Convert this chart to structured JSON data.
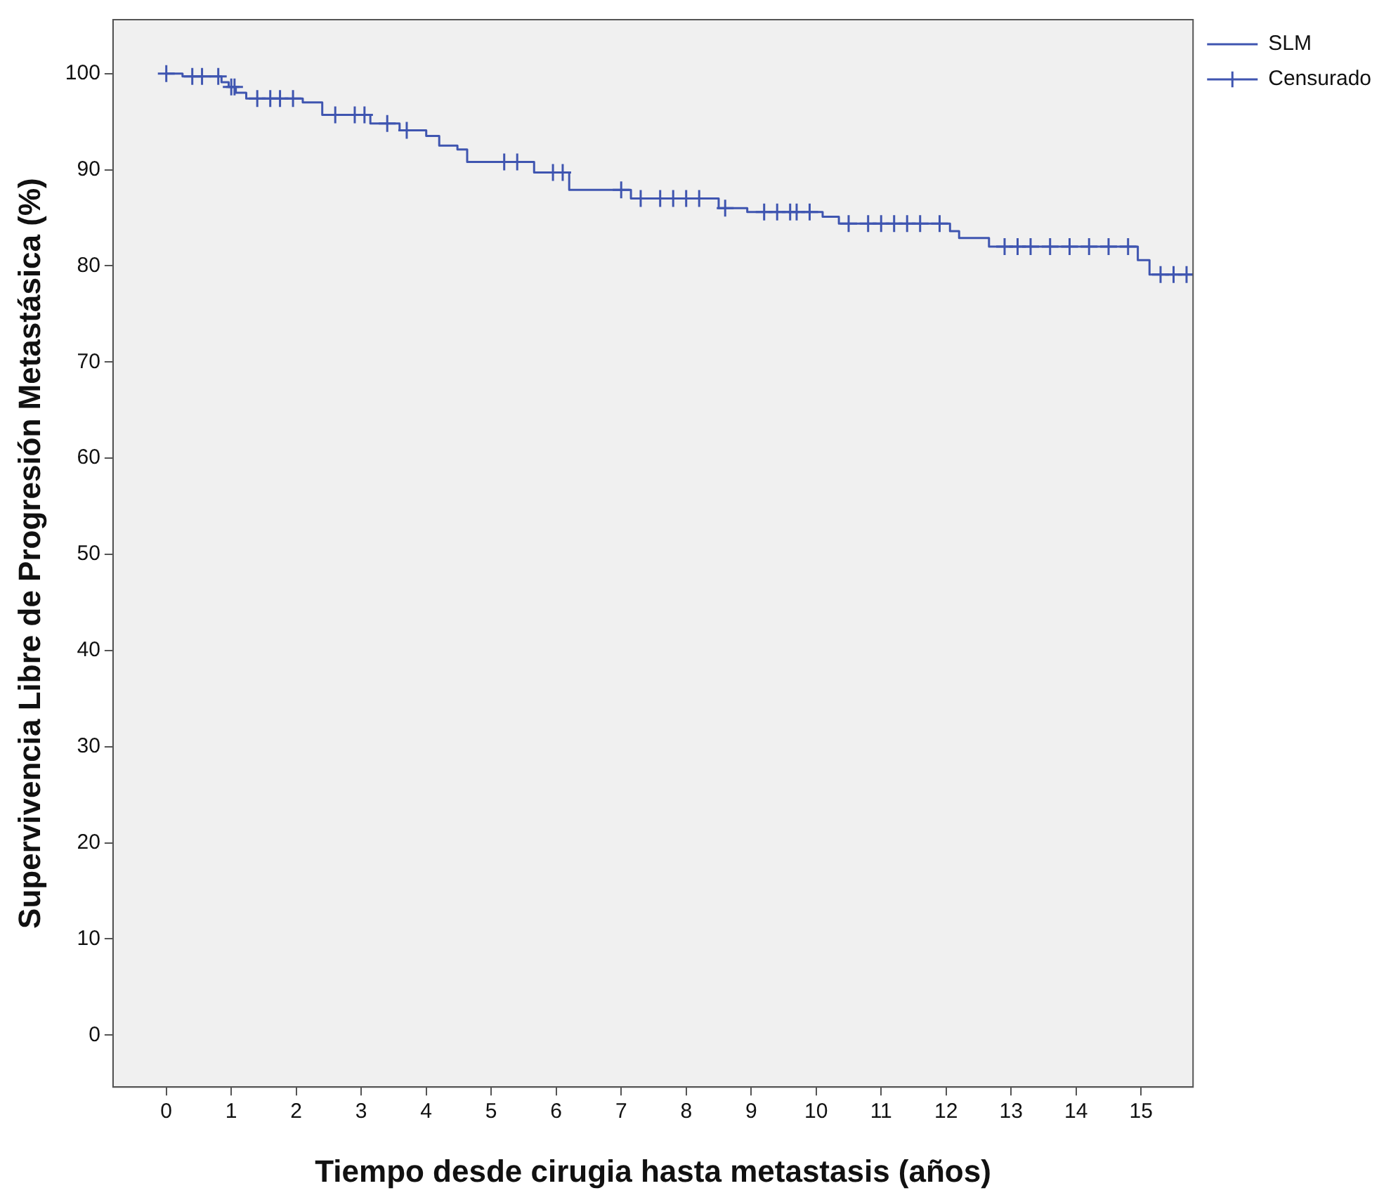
{
  "chart_data": {
    "type": "step",
    "xlabel": "Tiempo desde cirugia hasta metastasis (años)",
    "ylabel": "Supervivencia Libre de Progresión Metastásica (%)",
    "xlim": [
      -0.82,
      15.8
    ],
    "ylim": [
      -5.4,
      105.6
    ],
    "xticks": [
      0,
      1,
      2,
      3,
      4,
      5,
      6,
      7,
      8,
      9,
      10,
      11,
      12,
      13,
      14,
      15
    ],
    "yticks": [
      0,
      10,
      20,
      30,
      40,
      50,
      60,
      70,
      80,
      90,
      100
    ],
    "grid": false,
    "legend": "top right",
    "series": [
      {
        "name": "SLM",
        "color": "#3f55b0",
        "marker": "none",
        "x": [
          0,
          0.25,
          0.85,
          0.96,
          1.07,
          1.23,
          2.1,
          2.4,
          3.14,
          3.59,
          4.0,
          4.2,
          4.48,
          4.63,
          5.66,
          6.2,
          7.15,
          8.5,
          8.94,
          10.1,
          10.35,
          12.06,
          12.2,
          12.66,
          14.95,
          15.13,
          15.8
        ],
        "values": [
          100,
          99.7,
          99.1,
          98.6,
          98.0,
          97.4,
          97.0,
          95.7,
          94.8,
          94.1,
          93.5,
          92.5,
          92.1,
          90.8,
          89.7,
          87.9,
          87.0,
          86.0,
          85.6,
          85.1,
          84.4,
          83.6,
          82.9,
          82.0,
          80.6,
          79.1,
          79.1
        ]
      },
      {
        "name": "Censurado",
        "type": "scatter",
        "color": "#3f55b0",
        "marker": "cross",
        "x": [
          0,
          0.4,
          0.55,
          0.8,
          1.0,
          1.05,
          1.4,
          1.6,
          1.75,
          1.95,
          2.6,
          2.9,
          3.05,
          3.4,
          3.7,
          5.2,
          5.4,
          5.95,
          6.1,
          7.0,
          7.3,
          7.6,
          7.8,
          8.0,
          8.2,
          8.6,
          9.2,
          9.4,
          9.6,
          9.7,
          9.9,
          10.5,
          10.8,
          11.0,
          11.2,
          11.4,
          11.6,
          11.9,
          12.9,
          13.1,
          13.3,
          13.6,
          13.9,
          14.2,
          14.5,
          14.8,
          15.3,
          15.5,
          15.7
        ],
        "values": [
          100,
          99.7,
          99.7,
          99.7,
          98.6,
          98.6,
          97.4,
          97.4,
          97.4,
          97.4,
          95.7,
          95.7,
          95.7,
          94.8,
          94.1,
          90.8,
          90.8,
          89.7,
          89.7,
          87.9,
          87.0,
          87.0,
          87.0,
          87.0,
          87.0,
          86.0,
          85.6,
          85.6,
          85.6,
          85.6,
          85.6,
          84.4,
          84.4,
          84.4,
          84.4,
          84.4,
          84.4,
          84.4,
          82.0,
          82.0,
          82.0,
          82.0,
          82.0,
          82.0,
          82.0,
          82.0,
          79.1,
          79.1,
          79.1
        ]
      }
    ]
  }
}
